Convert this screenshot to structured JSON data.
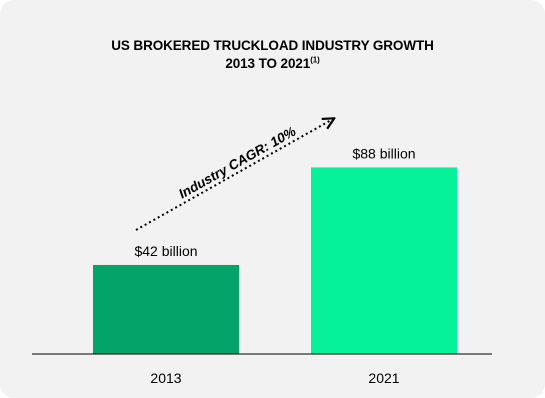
{
  "chart_data": {
    "type": "bar",
    "title": "US BROKERED TRUCKLOAD INDUSTRY GROWTH",
    "subtitle": "2013 TO 2021",
    "subtitle_superscript": "(1)",
    "categories": [
      "2013",
      "2021"
    ],
    "values": [
      42,
      88
    ],
    "data_labels": [
      "$42 billion",
      "$88 billion"
    ],
    "bar_colors": [
      "#04a36a",
      "#05f29b"
    ],
    "xlabel": "",
    "ylabel": "",
    "ylim": [
      0,
      100
    ],
    "grid": false,
    "legend": "none",
    "annotation": {
      "text": "Industry CAGR: 10%",
      "style": "dotted arrow from 2013 bar toward 2021 bar"
    }
  }
}
